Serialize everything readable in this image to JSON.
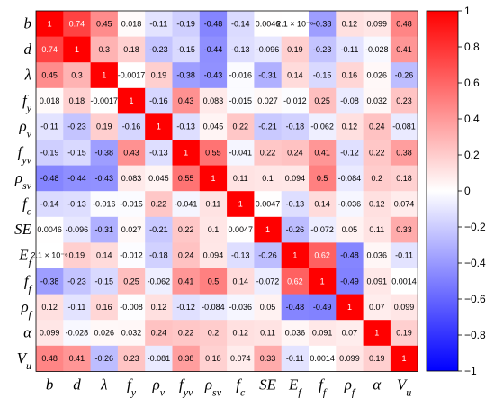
{
  "chart_data": {
    "type": "heatmap",
    "title": "",
    "variables": [
      {
        "id": "b",
        "base": "b",
        "sub": ""
      },
      {
        "id": "d",
        "base": "d",
        "sub": ""
      },
      {
        "id": "lambda",
        "base": "λ",
        "sub": ""
      },
      {
        "id": "fy",
        "base": "f",
        "sub": "y"
      },
      {
        "id": "rho_v",
        "base": "ρ",
        "sub": "v"
      },
      {
        "id": "fyv",
        "base": "f",
        "sub": "yv"
      },
      {
        "id": "rho_sv",
        "base": "ρ",
        "sub": "sv"
      },
      {
        "id": "fc",
        "base": "f",
        "sub": "c"
      },
      {
        "id": "SE",
        "base": "SE",
        "sub": ""
      },
      {
        "id": "Ef",
        "base": "E",
        "sub": "f"
      },
      {
        "id": "ff",
        "base": "f",
        "sub": "f"
      },
      {
        "id": "rho_f",
        "base": "ρ",
        "sub": "f"
      },
      {
        "id": "alpha",
        "base": "α",
        "sub": ""
      },
      {
        "id": "Vu",
        "base": "V",
        "sub": "u"
      }
    ],
    "values": [
      [
        1,
        0.74,
        0.45,
        0.018,
        -0.11,
        -0.19,
        -0.48,
        -0.14,
        0.0046,
        2.1e-06,
        -0.38,
        0.12,
        0.099,
        0.48
      ],
      [
        0.74,
        1,
        0.3,
        0.18,
        -0.23,
        -0.15,
        -0.44,
        -0.13,
        -0.096,
        0.19,
        -0.23,
        -0.11,
        -0.028,
        0.41
      ],
      [
        0.45,
        0.3,
        1,
        -0.0017,
        0.19,
        -0.38,
        -0.43,
        -0.016,
        -0.31,
        0.14,
        -0.15,
        0.16,
        0.026,
        -0.26
      ],
      [
        0.018,
        0.18,
        -0.0017,
        1,
        -0.16,
        0.43,
        0.083,
        -0.015,
        0.027,
        -0.012,
        0.25,
        -0.08,
        0.032,
        0.23
      ],
      [
        -0.11,
        -0.23,
        0.19,
        -0.16,
        1,
        -0.13,
        0.045,
        0.22,
        -0.21,
        -0.18,
        -0.062,
        0.12,
        0.24,
        -0.081
      ],
      [
        -0.19,
        -0.15,
        -0.38,
        0.43,
        -0.13,
        1,
        0.55,
        -0.041,
        0.22,
        0.24,
        0.41,
        -0.12,
        0.22,
        0.38
      ],
      [
        -0.48,
        -0.44,
        -0.43,
        0.083,
        0.045,
        0.55,
        1,
        0.11,
        0.1,
        0.094,
        0.5,
        -0.084,
        0.2,
        0.18
      ],
      [
        -0.14,
        -0.13,
        -0.016,
        -0.015,
        0.22,
        -0.041,
        0.11,
        1,
        0.0047,
        -0.13,
        0.14,
        -0.036,
        0.12,
        0.074
      ],
      [
        0.0046,
        -0.096,
        -0.31,
        0.027,
        -0.21,
        0.22,
        0.1,
        0.0047,
        1,
        -0.26,
        -0.072,
        0.05,
        0.11,
        0.33
      ],
      [
        2.1e-06,
        0.19,
        0.14,
        -0.012,
        -0.18,
        0.24,
        0.094,
        -0.13,
        -0.26,
        1,
        0.62,
        -0.48,
        0.036,
        -0.11
      ],
      [
        -0.38,
        -0.23,
        -0.15,
        0.25,
        -0.062,
        0.41,
        0.5,
        0.14,
        -0.072,
        0.62,
        1,
        -0.49,
        0.091,
        0.0014
      ],
      [
        0.12,
        -0.11,
        0.16,
        -0.008,
        0.12,
        -0.12,
        -0.084,
        -0.036,
        0.05,
        -0.48,
        -0.49,
        1,
        0.07,
        0.099
      ],
      [
        0.099,
        -0.028,
        0.026,
        0.032,
        0.24,
        0.22,
        0.2,
        0.12,
        0.11,
        0.036,
        0.091,
        0.07,
        1,
        0.19
      ],
      [
        0.48,
        0.41,
        -0.26,
        0.23,
        -0.081,
        0.38,
        0.18,
        0.074,
        0.33,
        -0.11,
        0.0014,
        0.099,
        0.19,
        1
      ]
    ],
    "labels": [
      [
        "1",
        "0.74",
        "0.45",
        "0.018",
        "-0.11",
        "-0.19",
        "-0.48",
        "-0.14",
        "0.0046",
        "2.1 × 10⁻⁶",
        "-0.38",
        "0.12",
        "0.099",
        "0.48"
      ],
      [
        "0.74",
        "1",
        "0.3",
        "0.18",
        "-0.23",
        "-0.15",
        "-0.44",
        "-0.13",
        "-0.096",
        "0.19",
        "-0.23",
        "-0.11",
        "-0.028",
        "0.41"
      ],
      [
        "0.45",
        "0.3",
        "1",
        "-0.0017",
        "0.19",
        "-0.38",
        "-0.43",
        "-0.016",
        "-0.31",
        "0.14",
        "-0.15",
        "0.16",
        "0.026",
        "-0.26"
      ],
      [
        "0.018",
        "0.18",
        "-0.0017",
        "1",
        "-0.16",
        "0.43",
        "0.083",
        "-0.015",
        "0.027",
        "-0.012",
        "0.25",
        "-0.08",
        "0.032",
        "0.23"
      ],
      [
        "-0.11",
        "-0.23",
        "0.19",
        "-0.16",
        "1",
        "-0.13",
        "0.045",
        "0.22",
        "-0.21",
        "-0.18",
        "-0.062",
        "0.12",
        "0.24",
        "-0.081"
      ],
      [
        "-0.19",
        "-0.15",
        "-0.38",
        "0.43",
        "-0.13",
        "1",
        "0.55",
        "-0.041",
        "0.22",
        "0.24",
        "0.41",
        "-0.12",
        "0.22",
        "0.38"
      ],
      [
        "-0.48",
        "-0.44",
        "-0.43",
        "0.083",
        "0.045",
        "0.55",
        "1",
        "0.11",
        "0.1",
        "0.094",
        "0.5",
        "-0.084",
        "0.2",
        "0.18"
      ],
      [
        "-0.14",
        "-0.13",
        "-0.016",
        "-0.015",
        "0.22",
        "-0.041",
        "0.11",
        "1",
        "0.0047",
        "-0.13",
        "0.14",
        "-0.036",
        "0.12",
        "0.074"
      ],
      [
        "0.0046",
        "-0.096",
        "-0.31",
        "0.027",
        "-0.21",
        "0.22",
        "0.1",
        "0.0047",
        "1",
        "-0.26",
        "-0.072",
        "0.05",
        "0.11",
        "0.33"
      ],
      [
        "2.1 × 10⁻⁶",
        "0.19",
        "0.14",
        "-0.012",
        "-0.18",
        "0.24",
        "0.094",
        "-0.13",
        "-0.26",
        "1",
        "0.62",
        "-0.48",
        "0.036",
        "-0.11"
      ],
      [
        "-0.38",
        "-0.23",
        "-0.15",
        "0.25",
        "-0.062",
        "0.41",
        "0.5",
        "0.14",
        "-0.072",
        "0.62",
        "1",
        "-0.49",
        "0.091",
        "0.0014"
      ],
      [
        "0.12",
        "-0.11",
        "0.16",
        "-0.008",
        "0.12",
        "-0.12",
        "-0.084",
        "-0.036",
        "0.05",
        "-0.48",
        "-0.49",
        "1",
        "0.07",
        "0.099"
      ],
      [
        "0.099",
        "-0.028",
        "0.026",
        "0.032",
        "0.24",
        "0.22",
        "0.2",
        "0.12",
        "0.11",
        "0.036",
        "0.091",
        "0.07",
        "1",
        "0.19"
      ],
      [
        "0.48",
        "0.41",
        "-0.26",
        "0.23",
        "-0.081",
        "0.38",
        "0.18",
        "0.074",
        "0.33",
        "-0.11",
        "0.0014",
        "0.099",
        "0.19",
        "1"
      ]
    ],
    "colorbar": {
      "range": [
        -1,
        1
      ],
      "ticks": [
        1,
        0.8,
        0.6,
        0.4,
        0.2,
        0,
        -0.2,
        -0.4,
        -0.6,
        -0.8,
        -1
      ],
      "tick_labels": [
        "1",
        "0.8",
        "0.6",
        "0.4",
        "0.2",
        "0",
        "−0.2",
        "−0.4",
        "−0.6",
        "−0.8",
        "−1"
      ],
      "colormap": "bwr",
      "color_min": "#0000ff",
      "color_mid": "#ffffff",
      "color_max": "#ff0000"
    }
  }
}
